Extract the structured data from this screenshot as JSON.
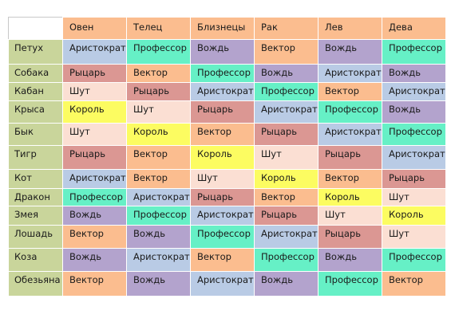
{
  "columns": [
    "Овен",
    "Телец",
    "Близнецы",
    "Рак",
    "Лев",
    "Дева"
  ],
  "rows": [
    {
      "animal": "Петух",
      "cells": [
        "Аристократ",
        "Профессор",
        "Вождь",
        "Вектор",
        "Вождь",
        "Профессор"
      ]
    },
    {
      "animal": "Собака",
      "cells": [
        "Рыцарь",
        "Вектор",
        "Профессор",
        "Вождь",
        "Аристократ",
        "Вождь"
      ]
    },
    {
      "animal": "Кабан",
      "cells": [
        "Шут",
        "Рыцарь",
        "Аристократ",
        "Профессор",
        "Вектор",
        "Аристократ"
      ]
    },
    {
      "animal": "Крыса",
      "cells": [
        "Король",
        "Шут",
        "Рыцарь",
        "Аристократ",
        "Профессор",
        "Вождь"
      ]
    },
    {
      "animal": "Бык",
      "cells": [
        "Шут",
        "Король",
        "Вектор",
        "Рыцарь",
        "Аристократ",
        "Профессор"
      ]
    },
    {
      "animal": "Тигр",
      "cells": [
        "Рыцарь",
        "Вектор",
        "Король",
        "Шут",
        "Рыцарь",
        "Аристократ"
      ]
    },
    {
      "animal": "Кот",
      "cells": [
        "Аристократ",
        "Вектор",
        "Шут",
        "Король",
        "Вектор",
        "Рыцарь"
      ]
    },
    {
      "animal": "Дракон",
      "cells": [
        "Профессор",
        "Аристократ",
        "Рыцарь",
        "Вектор",
        "Король",
        "Шут"
      ]
    },
    {
      "animal": "Змея",
      "cells": [
        "Вождь",
        "Профессор",
        "Аристократ",
        "Рыцарь",
        "Шут",
        "Король"
      ]
    },
    {
      "animal": "Лошадь",
      "cells": [
        "Вектор",
        "Вождь",
        "Профессор",
        "Аристократ",
        "Рыцарь",
        "Шут"
      ]
    },
    {
      "animal": "Коза",
      "cells": [
        "Вождь",
        "Аристократ",
        "Вектор",
        "Профессор",
        "Вождь",
        "Профессор"
      ]
    },
    {
      "animal": "Обезьяна",
      "cells": [
        "Вектор",
        "Вождь",
        "Аристократ",
        "Вождь",
        "Профессор",
        "Вектор"
      ]
    }
  ],
  "colors": {
    "header": "#fbbd8f",
    "animal": "#c9d59b",
    "Аристократ": "#b9cbe5",
    "Профессор": "#66f0c6",
    "Вождь": "#b3a3cd",
    "Вектор": "#fbbd8f",
    "Рыцарь": "#db9793",
    "Шут": "#fbdfd3",
    "Король": "#fcfc61"
  }
}
